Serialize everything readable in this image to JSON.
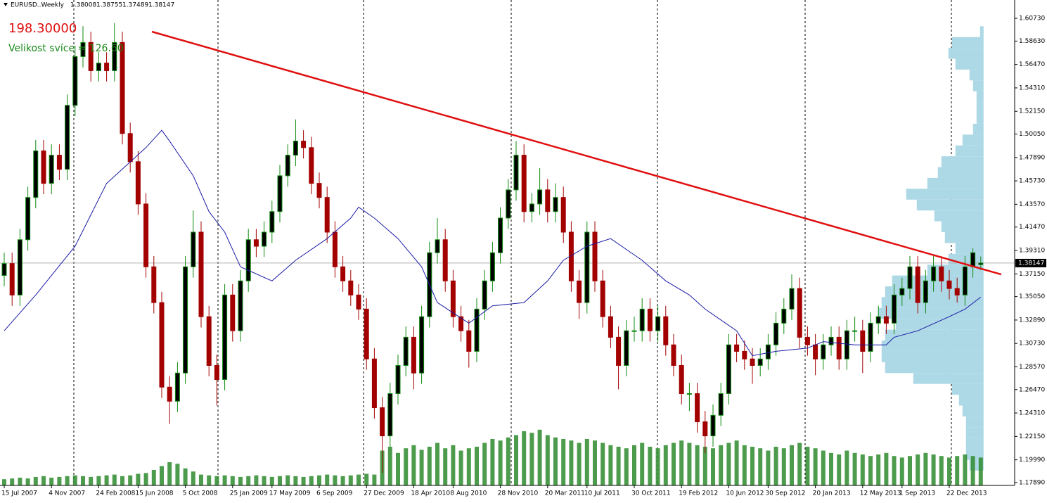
{
  "chart_data": {
    "type": "candlestick",
    "title": "EURUSD..Weekly",
    "header_ohlc": [
      1.38008,
      1.38755,
      1.37489,
      1.38147
    ],
    "annotations": [
      "198.30000",
      "Velikost svíce = 126.60"
    ],
    "categories": [
      "15 Jul 2007",
      null,
      null,
      null,
      null,
      null,
      "4 Nov 2007",
      null,
      null,
      null,
      null,
      null,
      "24 Feb 2008",
      null,
      null,
      null,
      null,
      "15 Jun 2008",
      null,
      null,
      null,
      null,
      null,
      "5 Oct 2008",
      null,
      null,
      null,
      null,
      null,
      "25 Jan 2009",
      null,
      null,
      null,
      null,
      "17 May 2009",
      null,
      null,
      null,
      null,
      null,
      "6 Sep 2009",
      null,
      null,
      null,
      null,
      null,
      "27 Dec 2009",
      null,
      null,
      null,
      null,
      null,
      "18 Apr 2010",
      null,
      null,
      null,
      null,
      "8 Aug 2010",
      null,
      null,
      null,
      null,
      null,
      "28 Nov 2010",
      null,
      null,
      null,
      null,
      null,
      "20 Mar 2011",
      null,
      null,
      null,
      null,
      "10 Jul 2011",
      null,
      null,
      null,
      null,
      null,
      "30 Oct 2011",
      null,
      null,
      null,
      null,
      null,
      "19 Feb 2012",
      null,
      null,
      null,
      null,
      null,
      "10 Jun 2012",
      null,
      null,
      null,
      null,
      "30 Sep 2012",
      null,
      null,
      null,
      null,
      null,
      "20 Jan 2013",
      null,
      null,
      null,
      null,
      null,
      "12 May 2013",
      null,
      null,
      null,
      null,
      "1 Sep 2013",
      null,
      null,
      null,
      null,
      null,
      "22 Dec 2013",
      null,
      null,
      null,
      null
    ],
    "open": [
      1.37,
      1.381,
      1.352,
      1.403,
      1.442,
      1.485,
      1.455,
      1.481,
      1.468,
      1.527,
      1.572,
      1.585,
      1.559,
      1.566,
      1.559,
      1.585,
      1.501,
      1.475,
      1.436,
      1.378,
      1.345,
      1.267,
      1.254,
      1.28,
      1.378,
      1.41,
      1.332,
      1.287,
      1.274,
      1.352,
      1.319,
      1.365,
      1.403,
      1.397,
      1.41,
      1.429,
      1.462,
      1.481,
      1.494,
      1.488,
      1.455,
      1.442,
      1.41,
      1.378,
      1.365,
      1.352,
      1.339,
      1.293,
      1.248,
      1.222,
      1.261,
      1.287,
      1.313,
      1.28,
      1.332,
      1.391,
      1.403,
      1.365,
      1.332,
      1.319,
      1.3,
      1.339,
      1.365,
      1.391,
      1.423,
      1.449,
      1.481,
      1.429,
      1.436,
      1.449,
      1.429,
      1.442,
      1.41,
      1.365,
      1.345,
      1.41,
      1.365,
      1.332,
      1.313,
      1.287,
      1.319,
      1.319,
      1.339,
      1.319,
      1.332,
      1.306,
      1.287,
      1.261,
      1.261,
      1.235,
      1.222,
      1.241,
      1.261,
      1.306,
      1.3,
      1.293,
      1.287,
      1.293,
      1.306,
      1.326,
      1.339,
      1.358,
      1.313,
      1.306,
      1.293,
      1.306,
      1.313,
      1.293,
      1.319,
      1.319,
      1.3,
      1.326,
      1.332,
      1.326,
      1.352,
      1.358,
      1.378,
      1.345,
      1.365,
      1.378,
      1.365,
      1.358,
      1.352,
      1.378,
      1.38008
    ],
    "high": [
      1.391,
      1.391,
      1.413,
      1.452,
      1.495,
      1.495,
      1.491,
      1.491,
      1.537,
      1.582,
      1.6,
      1.595,
      1.576,
      1.576,
      1.603,
      1.595,
      1.511,
      1.485,
      1.446,
      1.388,
      1.355,
      1.277,
      1.29,
      1.388,
      1.43,
      1.42,
      1.342,
      1.297,
      1.362,
      1.362,
      1.375,
      1.413,
      1.413,
      1.42,
      1.439,
      1.472,
      1.491,
      1.514,
      1.504,
      1.498,
      1.465,
      1.452,
      1.42,
      1.388,
      1.375,
      1.362,
      1.349,
      1.303,
      1.258,
      1.271,
      1.297,
      1.323,
      1.323,
      1.342,
      1.401,
      1.423,
      1.413,
      1.375,
      1.342,
      1.329,
      1.349,
      1.375,
      1.401,
      1.433,
      1.459,
      1.494,
      1.491,
      1.446,
      1.469,
      1.459,
      1.455,
      1.452,
      1.42,
      1.375,
      1.42,
      1.42,
      1.375,
      1.342,
      1.323,
      1.329,
      1.332,
      1.349,
      1.349,
      1.342,
      1.342,
      1.316,
      1.297,
      1.271,
      1.271,
      1.245,
      1.251,
      1.271,
      1.316,
      1.316,
      1.31,
      1.303,
      1.303,
      1.316,
      1.336,
      1.349,
      1.371,
      1.368,
      1.323,
      1.316,
      1.316,
      1.323,
      1.323,
      1.329,
      1.332,
      1.329,
      1.336,
      1.342,
      1.342,
      1.362,
      1.368,
      1.388,
      1.388,
      1.375,
      1.388,
      1.388,
      1.375,
      1.368,
      1.388,
      1.395,
      1.38755
    ],
    "low": [
      1.36,
      1.342,
      1.342,
      1.393,
      1.432,
      1.445,
      1.445,
      1.458,
      1.458,
      1.517,
      1.562,
      1.549,
      1.549,
      1.549,
      1.549,
      1.491,
      1.465,
      1.426,
      1.368,
      1.335,
      1.257,
      1.233,
      1.244,
      1.27,
      1.368,
      1.322,
      1.277,
      1.25,
      1.264,
      1.309,
      1.309,
      1.355,
      1.387,
      1.387,
      1.4,
      1.419,
      1.452,
      1.471,
      1.478,
      1.445,
      1.432,
      1.4,
      1.368,
      1.355,
      1.342,
      1.329,
      1.283,
      1.238,
      1.188,
      1.212,
      1.251,
      1.277,
      1.265,
      1.27,
      1.322,
      1.381,
      1.355,
      1.322,
      1.309,
      1.285,
      1.29,
      1.329,
      1.355,
      1.381,
      1.413,
      1.439,
      1.419,
      1.419,
      1.426,
      1.419,
      1.419,
      1.4,
      1.355,
      1.33,
      1.335,
      1.355,
      1.322,
      1.303,
      1.265,
      1.277,
      1.309,
      1.309,
      1.309,
      1.309,
      1.296,
      1.277,
      1.251,
      1.245,
      1.225,
      1.206,
      1.212,
      1.231,
      1.251,
      1.29,
      1.283,
      1.27,
      1.277,
      1.283,
      1.296,
      1.316,
      1.329,
      1.303,
      1.296,
      1.278,
      1.283,
      1.296,
      1.283,
      1.283,
      1.309,
      1.28,
      1.29,
      1.316,
      1.316,
      1.316,
      1.342,
      1.348,
      1.335,
      1.335,
      1.355,
      1.355,
      1.348,
      1.345,
      1.342,
      1.368,
      1.37489
    ],
    "close": [
      1.381,
      1.352,
      1.403,
      1.442,
      1.485,
      1.455,
      1.481,
      1.468,
      1.527,
      1.572,
      1.585,
      1.559,
      1.566,
      1.559,
      1.585,
      1.501,
      1.475,
      1.436,
      1.378,
      1.345,
      1.267,
      1.254,
      1.28,
      1.378,
      1.41,
      1.332,
      1.287,
      1.274,
      1.352,
      1.319,
      1.365,
      1.403,
      1.397,
      1.41,
      1.429,
      1.462,
      1.481,
      1.494,
      1.488,
      1.455,
      1.442,
      1.41,
      1.378,
      1.365,
      1.352,
      1.339,
      1.293,
      1.248,
      1.222,
      1.261,
      1.287,
      1.313,
      1.28,
      1.332,
      1.391,
      1.403,
      1.365,
      1.332,
      1.319,
      1.3,
      1.339,
      1.365,
      1.391,
      1.423,
      1.449,
      1.481,
      1.429,
      1.436,
      1.449,
      1.429,
      1.442,
      1.41,
      1.365,
      1.345,
      1.41,
      1.365,
      1.332,
      1.313,
      1.287,
      1.319,
      1.319,
      1.339,
      1.319,
      1.332,
      1.306,
      1.287,
      1.261,
      1.261,
      1.235,
      1.222,
      1.241,
      1.261,
      1.306,
      1.3,
      1.293,
      1.287,
      1.293,
      1.306,
      1.326,
      1.339,
      1.358,
      1.313,
      1.306,
      1.293,
      1.306,
      1.313,
      1.293,
      1.319,
      1.319,
      1.3,
      1.326,
      1.332,
      1.326,
      1.352,
      1.358,
      1.378,
      1.345,
      1.365,
      1.378,
      1.365,
      1.358,
      1.352,
      1.378,
      1.391,
      1.38147
    ],
    "bull_color": "#0f8a0f",
    "bear_color": "#a30000",
    "wick_color": "#0f8a0f",
    "volume": {
      "color": "#2e8b2e",
      "lim": [
        0,
        100
      ],
      "values": [
        8,
        9,
        10,
        9,
        11,
        12,
        10,
        11,
        12,
        13,
        12,
        11,
        12,
        13,
        14,
        12,
        13,
        15,
        16,
        20,
        25,
        30,
        28,
        22,
        18,
        14,
        13,
        12,
        13,
        12,
        11,
        12,
        13,
        12,
        11,
        12,
        13,
        12,
        11,
        12,
        13,
        14,
        13,
        12,
        13,
        14,
        15,
        14,
        45,
        50,
        42,
        48,
        52,
        46,
        50,
        55,
        48,
        52,
        45,
        48,
        50,
        55,
        60,
        58,
        62,
        65,
        70,
        68,
        72,
        65,
        62,
        60,
        58,
        55,
        60,
        58,
        55,
        52,
        50,
        48,
        52,
        55,
        50,
        48,
        52,
        55,
        58,
        55,
        52,
        50,
        48,
        52,
        55,
        58,
        52,
        50,
        48,
        45,
        50,
        48,
        52,
        55,
        50,
        48,
        45,
        42,
        40,
        45,
        42,
        40,
        38,
        40,
        42,
        38,
        36,
        38,
        40,
        42,
        40,
        38,
        36,
        38,
        40,
        38,
        36
      ]
    },
    "ma": {
      "color": "#1a1aa6",
      "x": [
        0,
        4,
        9,
        13,
        18,
        20,
        21,
        24,
        26,
        28,
        30,
        34,
        37,
        41,
        44,
        45,
        47,
        50,
        53,
        55,
        59,
        62,
        66,
        69,
        71,
        74,
        77,
        79,
        81,
        84,
        87,
        89,
        93,
        95,
        98,
        102,
        104,
        108,
        112,
        113,
        116,
        120,
        122,
        124
      ],
      "values": [
        1.319,
        1.352,
        1.397,
        1.455,
        1.488,
        1.504,
        1.494,
        1.462,
        1.429,
        1.41,
        1.378,
        1.365,
        1.384,
        1.404,
        1.423,
        1.433,
        1.423,
        1.404,
        1.378,
        1.345,
        1.326,
        1.342,
        1.345,
        1.365,
        1.384,
        1.397,
        1.404,
        1.394,
        1.384,
        1.365,
        1.352,
        1.339,
        1.319,
        1.296,
        1.3,
        1.303,
        1.309,
        1.306,
        1.306,
        1.313,
        1.319,
        1.332,
        1.339,
        1.35
      ]
    },
    "trendline": {
      "color": "#e01010",
      "x": [
        18.75,
        126.6
      ],
      "values": [
        1.595,
        1.371
      ]
    },
    "profile": {
      "color": "#add8e6",
      "lim": [
        0,
        150
      ],
      "bins": [
        1.19,
        1.2,
        1.21,
        1.22,
        1.23,
        1.24,
        1.25,
        1.26,
        1.27,
        1.28,
        1.29,
        1.3,
        1.31,
        1.32,
        1.33,
        1.34,
        1.35,
        1.36,
        1.37,
        1.38,
        1.39,
        1.4,
        1.41,
        1.42,
        1.43,
        1.44,
        1.45,
        1.46,
        1.47,
        1.48,
        1.49,
        1.5,
        1.51,
        1.52,
        1.53,
        1.54,
        1.55,
        1.56,
        1.57,
        1.58,
        1.59,
        1.6
      ],
      "counts": [
        20,
        25,
        25,
        25,
        25,
        30,
        35,
        45,
        100,
        140,
        145,
        145,
        140,
        125,
        150,
        145,
        140,
        130,
        80,
        50,
        40,
        55,
        60,
        70,
        95,
        110,
        80,
        65,
        60,
        40,
        30,
        15,
        10,
        10,
        10,
        15,
        20,
        40,
        50,
        45,
        5
      ]
    },
    "ylim": [
      1.1763,
      1.6242
    ],
    "yticks": [
      {
        "value": 1.6073,
        "label": "1.60730"
      },
      {
        "value": 1.5863,
        "label": "1.58630"
      },
      {
        "value": 1.5647,
        "label": "1.56470"
      },
      {
        "value": 1.5431,
        "label": "1.54310"
      },
      {
        "value": 1.5215,
        "label": "1.52150"
      },
      {
        "value": 1.5005,
        "label": "1.50050"
      },
      {
        "value": 1.4789,
        "label": "1.47890"
      },
      {
        "value": 1.4573,
        "label": "1.45730"
      },
      {
        "value": 1.4357,
        "label": "1.43570"
      },
      {
        "value": 1.4147,
        "label": "1.41470"
      },
      {
        "value": 1.3931,
        "label": "1.39310"
      },
      {
        "value": 1.3715,
        "label": "1.37150"
      },
      {
        "value": 1.3505,
        "label": "1.35050"
      },
      {
        "value": 1.3289,
        "label": "1.32890"
      },
      {
        "value": 1.3073,
        "label": "1.30730"
      },
      {
        "value": 1.2857,
        "label": "1.28570"
      },
      {
        "value": 1.2647,
        "label": "1.26470"
      },
      {
        "value": 1.2431,
        "label": "1.24310"
      },
      {
        "value": 1.2215,
        "label": "1.22150"
      },
      {
        "value": 1.1999,
        "label": "1.19990"
      },
      {
        "value": 1.1789,
        "label": "1.17890"
      }
    ]
  }
}
